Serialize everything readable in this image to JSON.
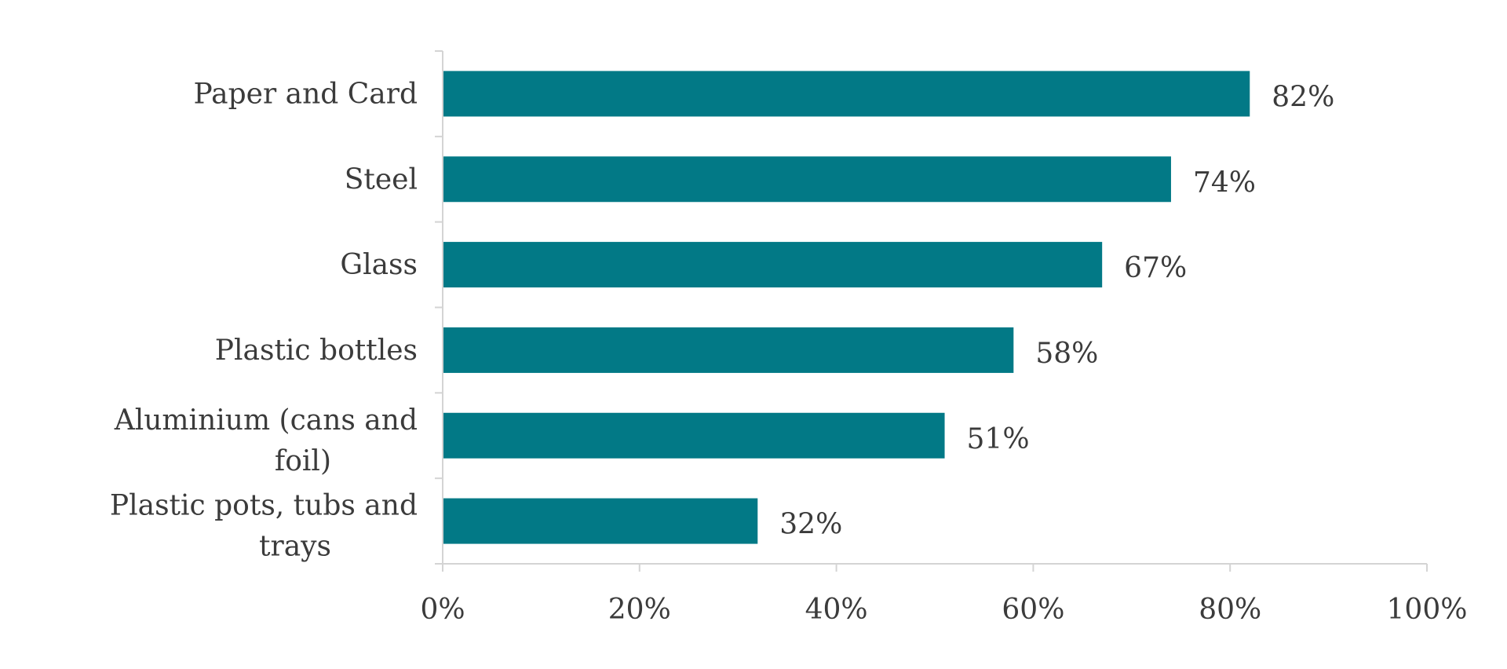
{
  "chart_data": {
    "type": "bar",
    "orientation": "horizontal",
    "categories": [
      "Paper and Card",
      "Steel",
      "Glass",
      "Plastic bottles",
      "Aluminium (cans and foil)",
      "Plastic pots, tubs and trays"
    ],
    "values": [
      82,
      74,
      67,
      58,
      51,
      32
    ],
    "data_labels": [
      "82%",
      "74%",
      "67%",
      "58%",
      "51%",
      "32%"
    ],
    "xlim": [
      0,
      100
    ],
    "x_ticks": [
      0,
      20,
      40,
      60,
      80,
      100
    ],
    "x_tick_labels": [
      "0%",
      "20%",
      "40%",
      "60%",
      "80%",
      "100%"
    ],
    "grid": false,
    "legend": "none",
    "bar_color": "#027986"
  }
}
